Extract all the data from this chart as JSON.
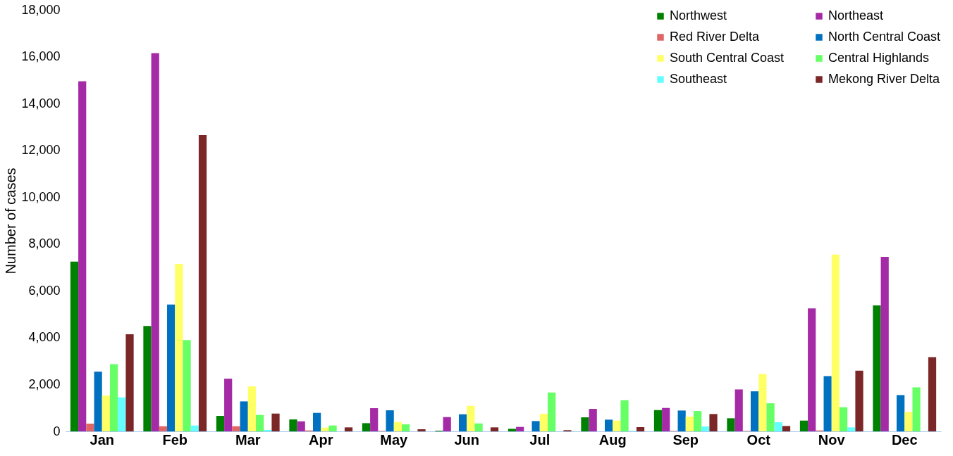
{
  "chart_data": {
    "type": "bar",
    "ylabel": "Number of cases",
    "categories": [
      "Jan",
      "Feb",
      "Mar",
      "Apr",
      "May",
      "Jun",
      "Jul",
      "Aug",
      "Sep",
      "Oct",
      "Nov",
      "Dec"
    ],
    "series": [
      {
        "name": "Northwest",
        "color": "#008000",
        "values": [
          7250,
          4500,
          660,
          510,
          350,
          30,
          110,
          600,
          910,
          560,
          460,
          5380
        ]
      },
      {
        "name": "Northeast",
        "color": "#a52aa5",
        "values": [
          14950,
          16150,
          2250,
          430,
          990,
          610,
          190,
          960,
          1000,
          1790,
          5250,
          7450
        ]
      },
      {
        "name": "Red River Delta",
        "color": "#e06666",
        "values": [
          330,
          220,
          220,
          40,
          20,
          0,
          0,
          0,
          20,
          20,
          40,
          0
        ]
      },
      {
        "name": "North Central Coast",
        "color": "#0070c0",
        "values": [
          2550,
          5420,
          1280,
          790,
          900,
          730,
          440,
          500,
          890,
          1710,
          2360,
          1550
        ]
      },
      {
        "name": "South Central Coast",
        "color": "#ffff66",
        "values": [
          1530,
          7150,
          1920,
          160,
          400,
          1090,
          750,
          460,
          630,
          2450,
          7550,
          830
        ]
      },
      {
        "name": "Central Highlands",
        "color": "#66ff66",
        "values": [
          2870,
          3900,
          700,
          250,
          300,
          340,
          1660,
          1330,
          870,
          1200,
          1030,
          1880
        ]
      },
      {
        "name": "Southeast",
        "color": "#66ffff",
        "values": [
          1450,
          250,
          60,
          0,
          0,
          0,
          0,
          20,
          210,
          390,
          170,
          0
        ]
      },
      {
        "name": "Mekong River Delta",
        "color": "#7b2727",
        "values": [
          4150,
          12650,
          760,
          170,
          90,
          170,
          50,
          180,
          740,
          230,
          2590,
          3170
        ]
      }
    ],
    "ylim": [
      0,
      18000
    ],
    "yticks": [
      0,
      {
        "value": 2000,
        "label": "2,000"
      },
      {
        "value": 4000,
        "label": "4,000"
      },
      {
        "value": 6000,
        "label": "6,000"
      },
      {
        "value": 8000,
        "label": "8,000"
      },
      {
        "value": 10000,
        "label": "10,000"
      },
      {
        "value": 12000,
        "label": "12,000"
      },
      {
        "value": 14000,
        "label": "14,000"
      },
      {
        "value": 16000,
        "label": "16,000"
      },
      {
        "value": 18000,
        "label": "18,000"
      }
    ],
    "grid": false,
    "legend": "top right"
  }
}
